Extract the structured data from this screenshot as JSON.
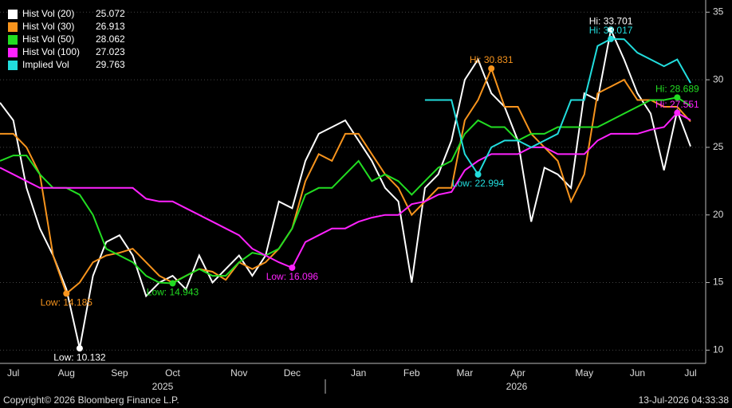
{
  "chart_data": {
    "type": "line",
    "categories": [
      null,
      "Jul",
      null,
      null,
      null,
      "Aug",
      null,
      null,
      null,
      "Sep",
      null,
      null,
      null,
      "Oct",
      null,
      null,
      null,
      null,
      "Nov",
      null,
      null,
      null,
      "Dec",
      null,
      null,
      null,
      null,
      "Jan",
      null,
      null,
      null,
      "Feb",
      null,
      null,
      null,
      "Mar",
      null,
      null,
      null,
      "Apr",
      null,
      null,
      null,
      null,
      "May",
      null,
      null,
      null,
      "Jun",
      null,
      null,
      null,
      "Jul"
    ],
    "year_labels": [
      "2025",
      "2026"
    ],
    "ylim": [
      9.02,
      35.9
    ],
    "yticks": [
      10,
      15,
      20,
      25,
      30,
      35
    ],
    "grid": true,
    "legend": "top-left",
    "series": [
      {
        "name": "Hist Vol (20)",
        "color": "#ffffff",
        "last_value": 25.072,
        "values": [
          28.3,
          27,
          22,
          19,
          17,
          14.5,
          10.132,
          15.5,
          18,
          18.5,
          17,
          14,
          15,
          15.5,
          14.5,
          17,
          15,
          16,
          17,
          15.5,
          17,
          21,
          20.5,
          24,
          26,
          26.5,
          27,
          25.5,
          24,
          22,
          21,
          15,
          22,
          23,
          25.5,
          30,
          31.5,
          29,
          28,
          25.5,
          19.5,
          23.5,
          23,
          22,
          29,
          28.5,
          33.701,
          31.5,
          29,
          27.5,
          23.3,
          27.7,
          25.072
        ],
        "annotations": [
          {
            "text": "Low: 10.132",
            "value": 10.132,
            "x": 6,
            "side": "below"
          },
          {
            "text": "Hi: 33.701",
            "value": 33.701,
            "x": 46,
            "side": "above"
          }
        ]
      },
      {
        "name": "Hist Vol (30)",
        "color": "#f7941d",
        "last_value": 26.913,
        "values": [
          26,
          26,
          25,
          23,
          17,
          14.185,
          15,
          16.5,
          17,
          17.2,
          17.5,
          16.5,
          15.5,
          15,
          15.5,
          16,
          15.8,
          15.2,
          16.5,
          16,
          16.5,
          17.5,
          19,
          22.5,
          24.5,
          24,
          26,
          26,
          24.5,
          23,
          22,
          20,
          21,
          22,
          22,
          27,
          28.5,
          30.831,
          28,
          28,
          26,
          25,
          24,
          21,
          23,
          29,
          29.5,
          30,
          28.5,
          28.5,
          28,
          28,
          26.913
        ],
        "annotations": [
          {
            "text": "Low: 14.185",
            "value": 14.185,
            "x": 5,
            "side": "below"
          },
          {
            "text": "Hi: 30.831",
            "value": 30.831,
            "x": 37,
            "side": "above"
          }
        ]
      },
      {
        "name": "Hist Vol (50)",
        "color": "#22dd22",
        "last_value": 28.062,
        "values": [
          24,
          24.4,
          24.4,
          23,
          22,
          22,
          21.5,
          20,
          17.5,
          17,
          16.5,
          15.5,
          15,
          14.943,
          15.5,
          16,
          15.5,
          15.5,
          16.5,
          17.2,
          17,
          17.5,
          19,
          21.5,
          22,
          22,
          23,
          24,
          22.5,
          23,
          22.5,
          21.5,
          22.5,
          23.5,
          24,
          26,
          27,
          26.5,
          26.5,
          25.5,
          26,
          26,
          26.5,
          26.5,
          26.5,
          26.5,
          27,
          27.5,
          28,
          28.5,
          28.5,
          28.689,
          28.062
        ],
        "annotations": [
          {
            "text": "Low: 14.943",
            "value": 14.943,
            "x": 13,
            "side": "below"
          },
          {
            "text": "Hi: 28.689",
            "value": 28.689,
            "x": 51,
            "side": "above"
          }
        ]
      },
      {
        "name": "Hist Vol (100)",
        "color": "#ff22ff",
        "last_value": 27.023,
        "values": [
          23.5,
          23,
          22.5,
          22,
          22,
          22,
          22,
          22,
          22,
          22,
          22,
          21.2,
          21,
          21,
          20.5,
          20,
          19.5,
          19,
          18.5,
          17.5,
          17,
          16.5,
          16.096,
          18,
          18.5,
          19,
          19,
          19.5,
          19.8,
          20,
          20,
          20.8,
          21,
          21.5,
          21.7,
          23.3,
          24,
          24.5,
          24.5,
          24.5,
          25,
          25,
          24.5,
          24.5,
          24.5,
          25.5,
          26,
          26,
          26,
          26.3,
          26.5,
          27.551,
          27.023
        ],
        "annotations": [
          {
            "text": "Low: 16.096",
            "value": 16.096,
            "x": 22,
            "side": "below"
          },
          {
            "text": "Hi: 27.551",
            "value": 27.551,
            "x": 51,
            "side": "above"
          }
        ]
      },
      {
        "name": "Implied Vol",
        "color": "#22dddd",
        "last_value": 29.763,
        "values": [
          null,
          null,
          null,
          null,
          null,
          null,
          null,
          null,
          null,
          null,
          null,
          null,
          null,
          null,
          null,
          null,
          null,
          null,
          null,
          null,
          null,
          null,
          null,
          null,
          null,
          null,
          null,
          null,
          null,
          null,
          null,
          null,
          28.5,
          28.5,
          28.5,
          24.5,
          22.994,
          25,
          25.5,
          25.5,
          25,
          25.5,
          26,
          28.5,
          28.5,
          32.5,
          33.017,
          33,
          32,
          31.5,
          31,
          31.5,
          29.763
        ],
        "annotations": [
          {
            "text": "Low: 22.994",
            "value": 22.994,
            "x": 36,
            "side": "below"
          },
          {
            "text": "Hi: 33.017",
            "value": 33.017,
            "x": 46,
            "side": "above"
          }
        ]
      }
    ]
  },
  "footer": {
    "copyright": "Copyright© 2026 Bloomberg Finance L.P.",
    "timestamp": "13-Jul-2026 04:33:38"
  }
}
